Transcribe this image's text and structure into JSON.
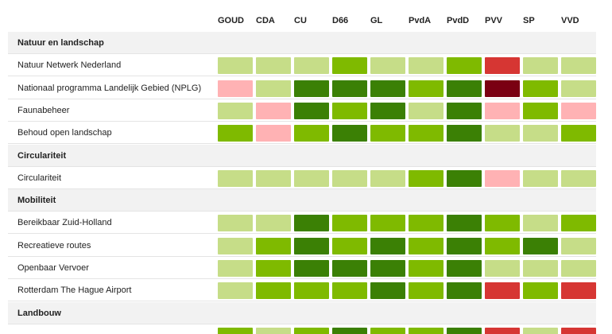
{
  "chart_data": {
    "type": "heatmap",
    "columns": [
      "GOUD",
      "CDA",
      "CU",
      "D66",
      "GL",
      "PvdA",
      "PvdD",
      "PVV",
      "SP",
      "VVD"
    ],
    "scale_colors": {
      "4": "#3b8005",
      "3": "#7fba00",
      "2": "#c6dd88",
      "1": "#ffb2b4",
      "0": "#d63633",
      "-1": "#7a0012"
    },
    "rows": [
      {
        "type": "section",
        "label": "Natuur en landschap"
      },
      {
        "type": "item",
        "label": "Natuur Netwerk Nederland",
        "values": [
          2,
          2,
          2,
          3,
          2,
          2,
          3,
          0,
          2,
          2
        ]
      },
      {
        "type": "item",
        "label": "Nationaal programma Landelijk Gebied (NPLG)",
        "values": [
          1,
          2,
          4,
          4,
          4,
          3,
          4,
          -1,
          3,
          2
        ]
      },
      {
        "type": "item",
        "label": "Faunabeheer",
        "values": [
          2,
          1,
          4,
          3,
          4,
          2,
          4,
          1,
          3,
          1
        ]
      },
      {
        "type": "item",
        "label": "Behoud open landschap",
        "values": [
          3,
          1,
          3,
          4,
          3,
          3,
          4,
          2,
          2,
          3
        ]
      },
      {
        "type": "section",
        "label": "Circulariteit"
      },
      {
        "type": "item",
        "label": "Circulariteit",
        "values": [
          2,
          2,
          2,
          2,
          2,
          3,
          4,
          1,
          2,
          2
        ]
      },
      {
        "type": "section",
        "label": "Mobiliteit"
      },
      {
        "type": "item",
        "label": "Bereikbaar Zuid-Holland",
        "values": [
          2,
          2,
          4,
          3,
          3,
          3,
          4,
          3,
          2,
          3
        ]
      },
      {
        "type": "item",
        "label": "Recreatieve routes",
        "values": [
          2,
          3,
          4,
          3,
          4,
          3,
          4,
          3,
          4,
          2
        ]
      },
      {
        "type": "item",
        "label": "Openbaar Vervoer",
        "values": [
          2,
          3,
          4,
          4,
          4,
          3,
          4,
          2,
          2,
          2
        ]
      },
      {
        "type": "item",
        "label": "Rotterdam The Hague Airport",
        "values": [
          2,
          3,
          3,
          3,
          4,
          3,
          4,
          0,
          3,
          0
        ]
      },
      {
        "type": "section",
        "label": "Landbouw"
      },
      {
        "type": "item",
        "label": "",
        "values": [
          3,
          2,
          3,
          4,
          3,
          3,
          4,
          0,
          2,
          0
        ]
      }
    ]
  }
}
